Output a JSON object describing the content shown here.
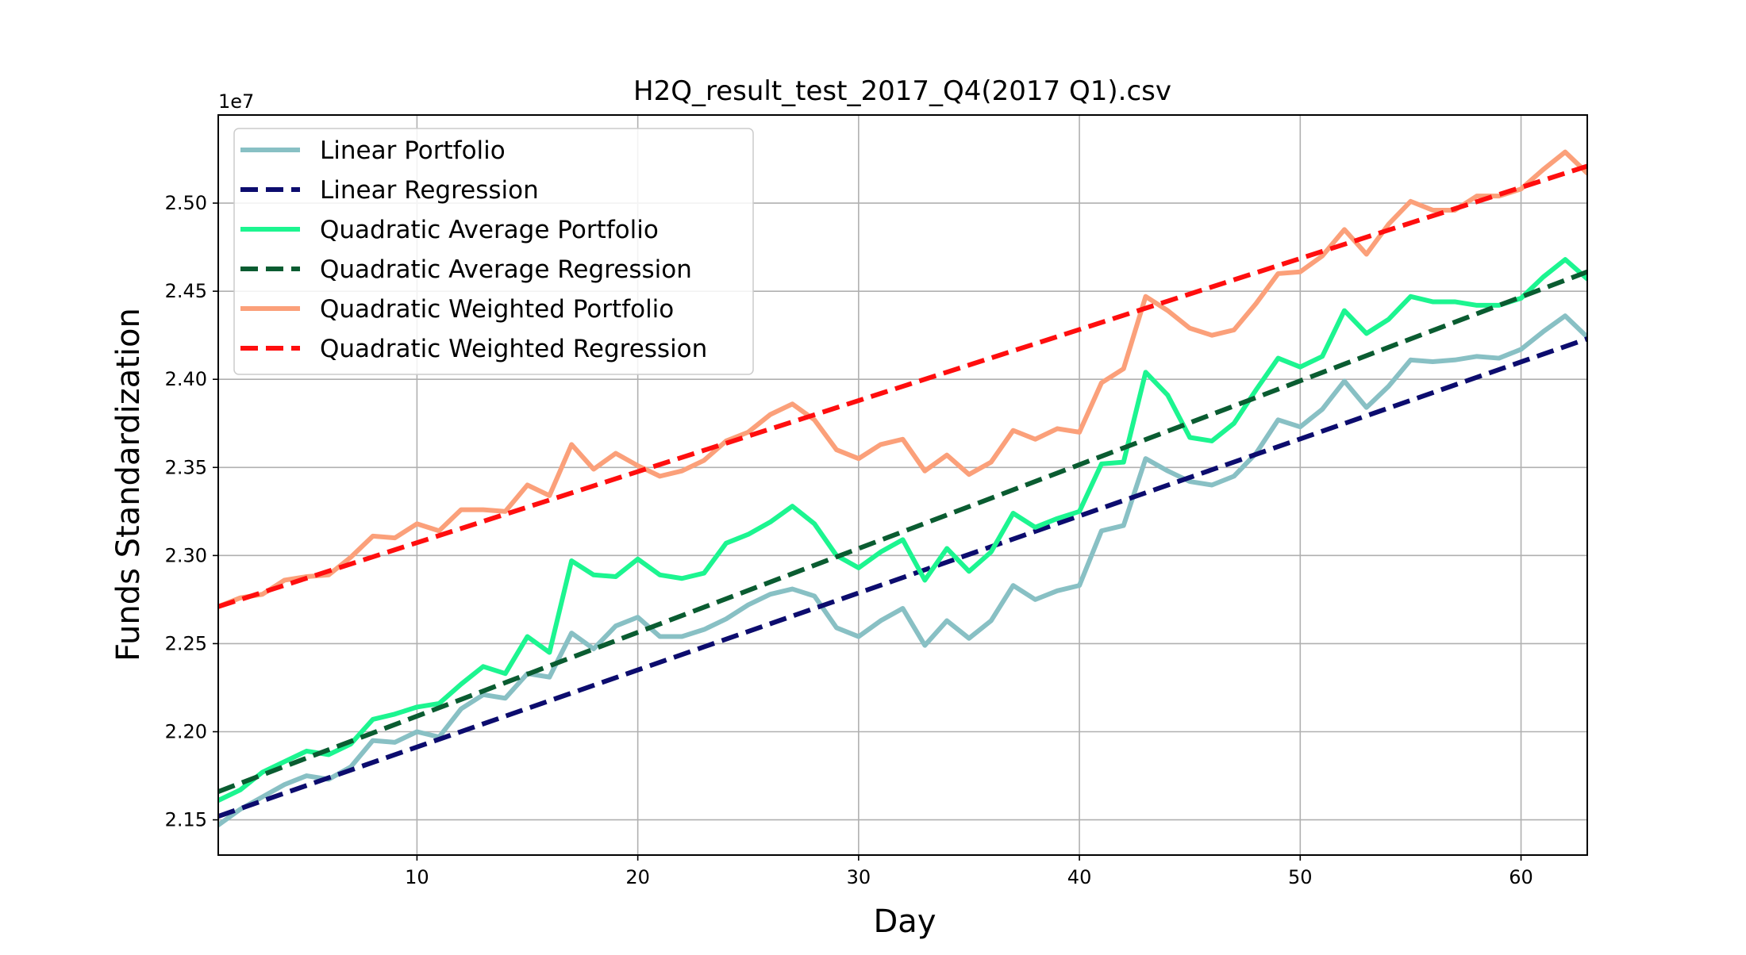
{
  "chart_data": {
    "type": "line",
    "title": "H2Q_result_test_2017_Q4(2017 Q1).csv",
    "xlabel": "Day",
    "ylabel": "Funds Standardization",
    "y_offset_label": "1e7",
    "xlim": [
      1,
      63
    ],
    "ylim": [
      21.3,
      25.5
    ],
    "grid": true,
    "legend_position": "upper-left",
    "x_ticks": [
      10,
      20,
      30,
      40,
      50,
      60
    ],
    "x_tick_labels": [
      "10",
      "20",
      "30",
      "40",
      "50",
      "60"
    ],
    "y_ticks": [
      21.5,
      22.0,
      22.5,
      23.0,
      23.5,
      24.0,
      24.5,
      25.0
    ],
    "y_tick_labels": [
      "2.15",
      "2.20",
      "2.25",
      "2.30",
      "2.35",
      "2.40",
      "2.45",
      "2.50"
    ],
    "x": [
      1,
      2,
      3,
      4,
      5,
      6,
      7,
      8,
      9,
      10,
      11,
      12,
      13,
      14,
      15,
      16,
      17,
      18,
      19,
      20,
      21,
      22,
      23,
      24,
      25,
      26,
      27,
      28,
      29,
      30,
      31,
      32,
      33,
      34,
      35,
      36,
      37,
      38,
      39,
      40,
      41,
      42,
      43,
      44,
      45,
      46,
      47,
      48,
      49,
      50,
      51,
      52,
      53,
      54,
      55,
      56,
      57,
      58,
      59,
      60,
      61,
      62,
      63
    ],
    "series": [
      {
        "name": "Linear Portfolio",
        "color": "#88c0c4",
        "style": "solid",
        "values": [
          21.47,
          21.56,
          21.63,
          21.7,
          21.75,
          21.73,
          21.8,
          21.95,
          21.94,
          22.0,
          21.97,
          22.13,
          22.21,
          22.19,
          22.33,
          22.31,
          22.56,
          22.47,
          22.6,
          22.65,
          22.54,
          22.54,
          22.58,
          22.64,
          22.72,
          22.78,
          22.81,
          22.77,
          22.59,
          22.54,
          22.63,
          22.7,
          22.49,
          22.63,
          22.53,
          22.63,
          22.83,
          22.75,
          22.8,
          22.83,
          23.14,
          23.17,
          23.55,
          23.48,
          23.42,
          23.4,
          23.45,
          23.58,
          23.77,
          23.73,
          23.83,
          23.99,
          23.84,
          23.96,
          24.11,
          24.1,
          24.11,
          24.13,
          24.12,
          24.17,
          24.27,
          24.36,
          24.24
        ]
      },
      {
        "name": "Linear Regression",
        "color": "#0c0c6e",
        "style": "dashed",
        "start": 21.52,
        "end": 24.23
      },
      {
        "name": "Quadratic Average Portfolio",
        "color": "#1cf590",
        "style": "solid",
        "values": [
          21.61,
          21.67,
          21.77,
          21.83,
          21.89,
          21.87,
          21.93,
          22.07,
          22.1,
          22.14,
          22.16,
          22.27,
          22.37,
          22.33,
          22.54,
          22.45,
          22.97,
          22.89,
          22.88,
          22.98,
          22.89,
          22.87,
          22.9,
          23.07,
          23.12,
          23.19,
          23.28,
          23.18,
          23.0,
          22.93,
          23.02,
          23.09,
          22.86,
          23.04,
          22.91,
          23.02,
          23.24,
          23.16,
          23.21,
          23.25,
          23.52,
          23.53,
          24.04,
          23.91,
          23.67,
          23.65,
          23.75,
          23.94,
          24.12,
          24.07,
          24.13,
          24.39,
          24.26,
          24.34,
          24.47,
          24.44,
          24.44,
          24.42,
          24.42,
          24.46,
          24.58,
          24.68,
          24.57
        ]
      },
      {
        "name": "Quadratic Average Regression",
        "color": "#0a5c31",
        "style": "dashed",
        "start": 21.66,
        "end": 24.61
      },
      {
        "name": "Quadratic Weighted Portfolio",
        "color": "#fba07a",
        "style": "solid",
        "values": [
          22.71,
          22.76,
          22.78,
          22.86,
          22.88,
          22.89,
          22.99,
          23.11,
          23.1,
          23.18,
          23.14,
          23.26,
          23.26,
          23.25,
          23.4,
          23.34,
          23.63,
          23.49,
          23.58,
          23.51,
          23.45,
          23.48,
          23.54,
          23.65,
          23.7,
          23.8,
          23.86,
          23.77,
          23.6,
          23.55,
          23.63,
          23.66,
          23.48,
          23.57,
          23.46,
          23.53,
          23.71,
          23.66,
          23.72,
          23.7,
          23.98,
          24.06,
          24.47,
          24.39,
          24.29,
          24.25,
          24.28,
          24.43,
          24.6,
          24.61,
          24.7,
          24.85,
          24.71,
          24.88,
          25.01,
          24.96,
          24.96,
          25.04,
          25.04,
          25.08,
          25.19,
          25.29,
          25.17
        ]
      },
      {
        "name": "Quadratic Weighted Regression",
        "color": "#ff0e0e",
        "style": "dashed",
        "start": 22.71,
        "end": 25.21
      }
    ]
  }
}
